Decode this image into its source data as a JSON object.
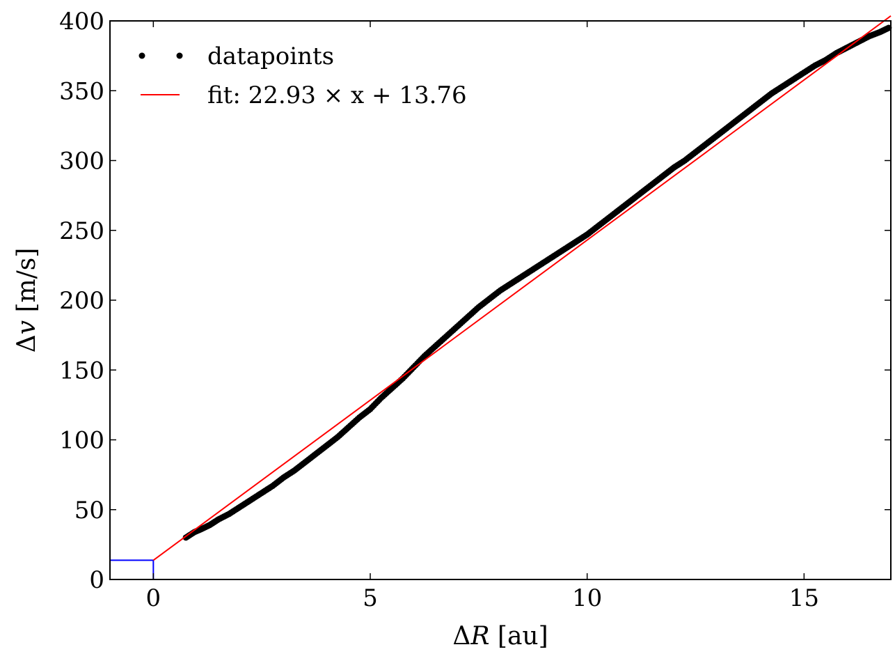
{
  "chart_data": {
    "type": "scatter",
    "xlabel_prefix": "Δ",
    "xlabel_var": "R",
    "xlabel_unit": " [au]",
    "ylabel_prefix": "Δ",
    "ylabel_var": "v",
    "ylabel_unit": " [m/s]",
    "xlim": [
      -1,
      17
    ],
    "ylim": [
      0,
      400
    ],
    "xticks": [
      0,
      5,
      10,
      15
    ],
    "yticks": [
      0,
      50,
      100,
      150,
      200,
      250,
      300,
      350,
      400
    ],
    "x_tick_labels": [
      "0",
      "5",
      "10",
      "15"
    ],
    "y_tick_labels": [
      "0",
      "50",
      "100",
      "150",
      "200",
      "250",
      "300",
      "350",
      "400"
    ],
    "grid": false,
    "legend_position": "top-left",
    "series": [
      {
        "name": "datapoints",
        "kind": "scatter",
        "color": "#000000",
        "x": [
          0.75,
          0.95,
          1.1,
          1.3,
          1.5,
          1.75,
          2.0,
          2.25,
          2.5,
          2.75,
          3.0,
          3.25,
          3.5,
          3.75,
          4.0,
          4.25,
          4.5,
          4.75,
          5.0,
          5.25,
          5.5,
          5.75,
          6.0,
          6.25,
          6.5,
          6.75,
          7.0,
          7.25,
          7.5,
          7.75,
          8.0,
          8.25,
          8.5,
          8.75,
          9.0,
          9.25,
          9.5,
          9.75,
          10.0,
          10.25,
          10.5,
          10.75,
          11.0,
          11.25,
          11.5,
          11.75,
          12.0,
          12.25,
          12.5,
          12.75,
          13.0,
          13.25,
          13.5,
          13.75,
          14.0,
          14.25,
          14.5,
          14.75,
          15.0,
          15.25,
          15.5,
          15.75,
          16.0,
          16.25,
          16.5,
          16.75,
          16.95
        ],
        "y": [
          30,
          34,
          36,
          39,
          43,
          47,
          52,
          57,
          62,
          67,
          73,
          78,
          84,
          90,
          96,
          102,
          109,
          116,
          122,
          130,
          137,
          144,
          152,
          160,
          167,
          174,
          181,
          188,
          195,
          201,
          207,
          212,
          217,
          222,
          227,
          232,
          237,
          242,
          247,
          253,
          259,
          265,
          271,
          277,
          283,
          289,
          295,
          300,
          306,
          312,
          318,
          324,
          330,
          336,
          342,
          348,
          353,
          358,
          363,
          368,
          372,
          377,
          381,
          385,
          389,
          392,
          395
        ]
      },
      {
        "name": "fit: 22.93 × x + 13.76",
        "kind": "line",
        "color": "#ff0000",
        "slope": 22.93,
        "intercept": 13.76,
        "x": [
          0,
          17
        ],
        "y": [
          13.76,
          403.57
        ]
      },
      {
        "kind": "line",
        "color": "#0000ff",
        "x": [
          -1,
          0,
          0
        ],
        "y": [
          13.76,
          13.76,
          0
        ]
      }
    ]
  }
}
